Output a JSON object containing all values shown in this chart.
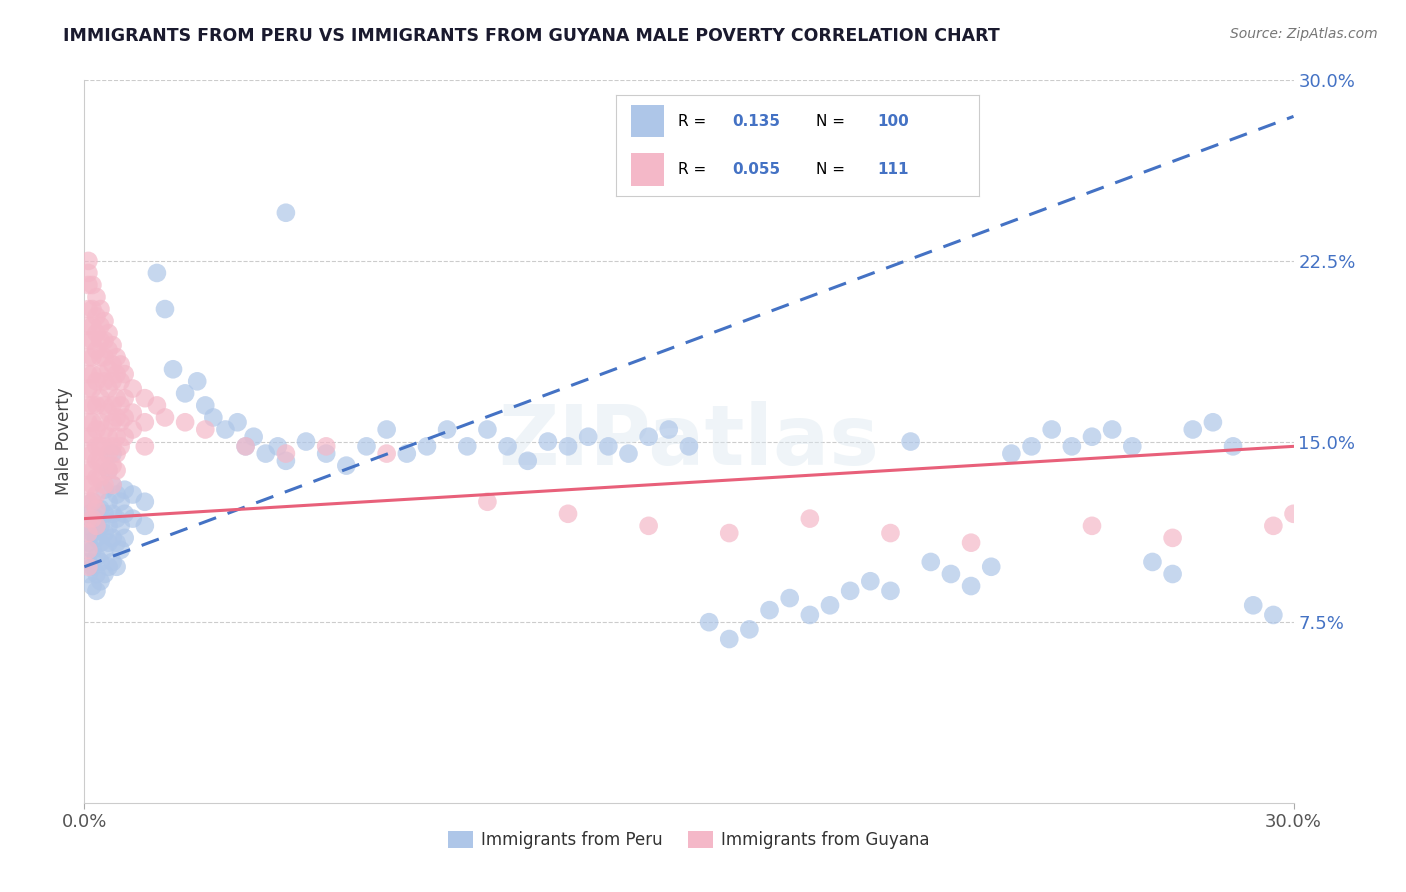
{
  "title": "IMMIGRANTS FROM PERU VS IMMIGRANTS FROM GUYANA MALE POVERTY CORRELATION CHART",
  "source": "Source: ZipAtlas.com",
  "ylabel": "Male Poverty",
  "xlim": [
    0.0,
    0.3
  ],
  "ylim": [
    0.0,
    0.3
  ],
  "yticks": [
    0.0,
    0.075,
    0.15,
    0.225,
    0.3
  ],
  "ytick_labels": [
    "",
    "7.5%",
    "15.0%",
    "22.5%",
    "30.0%"
  ],
  "xtick_labels": [
    "0.0%",
    "30.0%"
  ],
  "peru_color": "#aec6e8",
  "guyana_color": "#f4b8c8",
  "peru_line_color": "#4472c4",
  "guyana_line_color": "#e8607a",
  "legend_R_peru": "0.135",
  "legend_N_peru": "100",
  "legend_R_guyana": "0.055",
  "legend_N_guyana": "111",
  "watermark": "ZIPatlas",
  "peru_trend": [
    0.098,
    0.285
  ],
  "guyana_trend": [
    0.118,
    0.148
  ],
  "peru_scatter": [
    [
      0.001,
      0.12
    ],
    [
      0.001,
      0.115
    ],
    [
      0.001,
      0.108
    ],
    [
      0.001,
      0.1
    ],
    [
      0.001,
      0.095
    ],
    [
      0.002,
      0.125
    ],
    [
      0.002,
      0.112
    ],
    [
      0.002,
      0.105
    ],
    [
      0.002,
      0.098
    ],
    [
      0.002,
      0.09
    ],
    [
      0.003,
      0.118
    ],
    [
      0.003,
      0.11
    ],
    [
      0.003,
      0.102
    ],
    [
      0.003,
      0.095
    ],
    [
      0.003,
      0.088
    ],
    [
      0.004,
      0.122
    ],
    [
      0.004,
      0.115
    ],
    [
      0.004,
      0.108
    ],
    [
      0.004,
      0.1
    ],
    [
      0.004,
      0.092
    ],
    [
      0.005,
      0.13
    ],
    [
      0.005,
      0.12
    ],
    [
      0.005,
      0.112
    ],
    [
      0.005,
      0.105
    ],
    [
      0.005,
      0.095
    ],
    [
      0.006,
      0.138
    ],
    [
      0.006,
      0.125
    ],
    [
      0.006,
      0.115
    ],
    [
      0.006,
      0.108
    ],
    [
      0.006,
      0.098
    ],
    [
      0.007,
      0.145
    ],
    [
      0.007,
      0.132
    ],
    [
      0.007,
      0.12
    ],
    [
      0.007,
      0.11
    ],
    [
      0.007,
      0.1
    ],
    [
      0.008,
      0.128
    ],
    [
      0.008,
      0.118
    ],
    [
      0.008,
      0.108
    ],
    [
      0.008,
      0.098
    ],
    [
      0.009,
      0.125
    ],
    [
      0.009,
      0.115
    ],
    [
      0.009,
      0.105
    ],
    [
      0.01,
      0.13
    ],
    [
      0.01,
      0.12
    ],
    [
      0.01,
      0.11
    ],
    [
      0.012,
      0.128
    ],
    [
      0.012,
      0.118
    ],
    [
      0.015,
      0.125
    ],
    [
      0.015,
      0.115
    ],
    [
      0.018,
      0.22
    ],
    [
      0.02,
      0.205
    ],
    [
      0.022,
      0.18
    ],
    [
      0.025,
      0.17
    ],
    [
      0.028,
      0.175
    ],
    [
      0.03,
      0.165
    ],
    [
      0.032,
      0.16
    ],
    [
      0.035,
      0.155
    ],
    [
      0.038,
      0.158
    ],
    [
      0.04,
      0.148
    ],
    [
      0.042,
      0.152
    ],
    [
      0.045,
      0.145
    ],
    [
      0.048,
      0.148
    ],
    [
      0.05,
      0.142
    ],
    [
      0.055,
      0.15
    ],
    [
      0.06,
      0.145
    ],
    [
      0.065,
      0.14
    ],
    [
      0.07,
      0.148
    ],
    [
      0.075,
      0.155
    ],
    [
      0.08,
      0.145
    ],
    [
      0.085,
      0.148
    ],
    [
      0.09,
      0.155
    ],
    [
      0.095,
      0.148
    ],
    [
      0.1,
      0.155
    ],
    [
      0.105,
      0.148
    ],
    [
      0.11,
      0.142
    ],
    [
      0.115,
      0.15
    ],
    [
      0.12,
      0.148
    ],
    [
      0.125,
      0.152
    ],
    [
      0.13,
      0.148
    ],
    [
      0.135,
      0.145
    ],
    [
      0.14,
      0.152
    ],
    [
      0.145,
      0.155
    ],
    [
      0.15,
      0.148
    ],
    [
      0.155,
      0.075
    ],
    [
      0.16,
      0.068
    ],
    [
      0.165,
      0.072
    ],
    [
      0.17,
      0.08
    ],
    [
      0.175,
      0.085
    ],
    [
      0.18,
      0.078
    ],
    [
      0.185,
      0.082
    ],
    [
      0.19,
      0.088
    ],
    [
      0.195,
      0.092
    ],
    [
      0.2,
      0.088
    ],
    [
      0.205,
      0.15
    ],
    [
      0.21,
      0.1
    ],
    [
      0.215,
      0.095
    ],
    [
      0.22,
      0.09
    ],
    [
      0.225,
      0.098
    ],
    [
      0.23,
      0.145
    ],
    [
      0.235,
      0.148
    ],
    [
      0.24,
      0.155
    ],
    [
      0.245,
      0.148
    ],
    [
      0.25,
      0.152
    ],
    [
      0.255,
      0.155
    ],
    [
      0.26,
      0.148
    ],
    [
      0.265,
      0.1
    ],
    [
      0.27,
      0.095
    ],
    [
      0.275,
      0.155
    ],
    [
      0.28,
      0.158
    ],
    [
      0.285,
      0.148
    ],
    [
      0.29,
      0.082
    ],
    [
      0.295,
      0.078
    ],
    [
      0.05,
      0.245
    ]
  ],
  "guyana_scatter": [
    [
      0.001,
      0.225
    ],
    [
      0.001,
      0.22
    ],
    [
      0.001,
      0.215
    ],
    [
      0.001,
      0.205
    ],
    [
      0.001,
      0.198
    ],
    [
      0.001,
      0.192
    ],
    [
      0.001,
      0.185
    ],
    [
      0.001,
      0.178
    ],
    [
      0.001,
      0.172
    ],
    [
      0.001,
      0.165
    ],
    [
      0.001,
      0.158
    ],
    [
      0.001,
      0.152
    ],
    [
      0.001,
      0.145
    ],
    [
      0.001,
      0.138
    ],
    [
      0.001,
      0.132
    ],
    [
      0.001,
      0.125
    ],
    [
      0.001,
      0.118
    ],
    [
      0.001,
      0.112
    ],
    [
      0.001,
      0.105
    ],
    [
      0.001,
      0.098
    ],
    [
      0.002,
      0.215
    ],
    [
      0.002,
      0.205
    ],
    [
      0.002,
      0.198
    ],
    [
      0.002,
      0.192
    ],
    [
      0.002,
      0.185
    ],
    [
      0.002,
      0.178
    ],
    [
      0.002,
      0.172
    ],
    [
      0.002,
      0.165
    ],
    [
      0.002,
      0.158
    ],
    [
      0.002,
      0.152
    ],
    [
      0.002,
      0.145
    ],
    [
      0.002,
      0.138
    ],
    [
      0.002,
      0.132
    ],
    [
      0.002,
      0.125
    ],
    [
      0.002,
      0.118
    ],
    [
      0.003,
      0.21
    ],
    [
      0.003,
      0.202
    ],
    [
      0.003,
      0.195
    ],
    [
      0.003,
      0.188
    ],
    [
      0.003,
      0.175
    ],
    [
      0.003,
      0.165
    ],
    [
      0.003,
      0.155
    ],
    [
      0.003,
      0.148
    ],
    [
      0.003,
      0.142
    ],
    [
      0.003,
      0.135
    ],
    [
      0.003,
      0.128
    ],
    [
      0.003,
      0.122
    ],
    [
      0.003,
      0.115
    ],
    [
      0.004,
      0.205
    ],
    [
      0.004,
      0.198
    ],
    [
      0.004,
      0.192
    ],
    [
      0.004,
      0.185
    ],
    [
      0.004,
      0.178
    ],
    [
      0.004,
      0.168
    ],
    [
      0.004,
      0.158
    ],
    [
      0.004,
      0.148
    ],
    [
      0.004,
      0.142
    ],
    [
      0.004,
      0.135
    ],
    [
      0.005,
      0.2
    ],
    [
      0.005,
      0.192
    ],
    [
      0.005,
      0.185
    ],
    [
      0.005,
      0.175
    ],
    [
      0.005,
      0.165
    ],
    [
      0.005,
      0.155
    ],
    [
      0.005,
      0.148
    ],
    [
      0.005,
      0.14
    ],
    [
      0.005,
      0.132
    ],
    [
      0.006,
      0.195
    ],
    [
      0.006,
      0.188
    ],
    [
      0.006,
      0.18
    ],
    [
      0.006,
      0.172
    ],
    [
      0.006,
      0.162
    ],
    [
      0.006,
      0.152
    ],
    [
      0.006,
      0.145
    ],
    [
      0.006,
      0.138
    ],
    [
      0.007,
      0.19
    ],
    [
      0.007,
      0.182
    ],
    [
      0.007,
      0.175
    ],
    [
      0.007,
      0.165
    ],
    [
      0.007,
      0.158
    ],
    [
      0.007,
      0.148
    ],
    [
      0.007,
      0.14
    ],
    [
      0.007,
      0.132
    ],
    [
      0.008,
      0.185
    ],
    [
      0.008,
      0.178
    ],
    [
      0.008,
      0.168
    ],
    [
      0.008,
      0.16
    ],
    [
      0.008,
      0.152
    ],
    [
      0.008,
      0.145
    ],
    [
      0.008,
      0.138
    ],
    [
      0.009,
      0.182
    ],
    [
      0.009,
      0.175
    ],
    [
      0.009,
      0.165
    ],
    [
      0.009,
      0.158
    ],
    [
      0.009,
      0.148
    ],
    [
      0.01,
      0.178
    ],
    [
      0.01,
      0.168
    ],
    [
      0.01,
      0.16
    ],
    [
      0.01,
      0.152
    ],
    [
      0.012,
      0.172
    ],
    [
      0.012,
      0.162
    ],
    [
      0.012,
      0.155
    ],
    [
      0.015,
      0.168
    ],
    [
      0.015,
      0.158
    ],
    [
      0.015,
      0.148
    ],
    [
      0.018,
      0.165
    ],
    [
      0.02,
      0.16
    ],
    [
      0.025,
      0.158
    ],
    [
      0.03,
      0.155
    ],
    [
      0.04,
      0.148
    ],
    [
      0.05,
      0.145
    ],
    [
      0.06,
      0.148
    ],
    [
      0.075,
      0.145
    ],
    [
      0.1,
      0.125
    ],
    [
      0.12,
      0.12
    ],
    [
      0.14,
      0.115
    ],
    [
      0.16,
      0.112
    ],
    [
      0.18,
      0.118
    ],
    [
      0.2,
      0.112
    ],
    [
      0.22,
      0.108
    ],
    [
      0.25,
      0.115
    ],
    [
      0.27,
      0.11
    ],
    [
      0.295,
      0.115
    ],
    [
      0.3,
      0.12
    ]
  ]
}
